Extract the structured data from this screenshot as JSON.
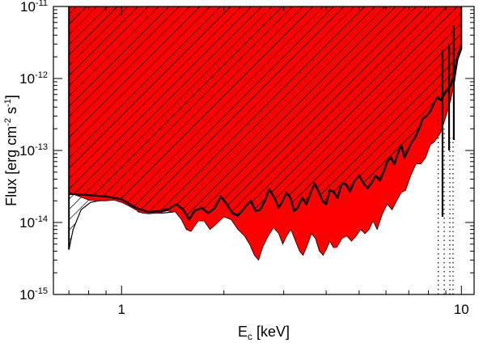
{
  "chart_data": {
    "type": "area",
    "xlabel": {
      "main": "E",
      "sub": "c",
      "rest": " [keV]"
    },
    "ylabel": {
      "p1": "Flux [erg cm",
      "sup1": "-2",
      "p2": " s",
      "sup2": "-1",
      "p3": "]"
    },
    "x_scale": "log",
    "y_scale": "log",
    "xlim": [
      0.63,
      10.9
    ],
    "ylim": [
      1e-15,
      1e-11
    ],
    "x_ticklabels": [
      {
        "value": 1,
        "label": "1"
      },
      {
        "value": 10,
        "label": "10"
      }
    ],
    "y_ticklabels": [
      {
        "value": 1e-15,
        "base": "10",
        "exp": "-15"
      },
      {
        "value": 1e-14,
        "base": "10",
        "exp": "-14"
      },
      {
        "value": 1e-13,
        "base": "10",
        "exp": "-13"
      },
      {
        "value": 1e-12,
        "base": "10",
        "exp": "-12"
      },
      {
        "value": 1e-11,
        "base": "10",
        "exp": "-11"
      }
    ],
    "colors": {
      "red_region": "#ff0000",
      "outline": "#000000",
      "hatch": "#000000"
    },
    "series": [
      {
        "style": "black-hatched-region",
        "upper": [
          [
            0.7,
            1e-11
          ],
          [
            10.0,
            1e-11
          ]
        ],
        "lower": [
          [
            0.7,
            4.2e-15
          ],
          [
            0.72,
            8e-15
          ],
          [
            0.76,
            1.5e-14
          ],
          [
            0.81,
            1.9e-14
          ],
          [
            0.88,
            2.05e-14
          ],
          [
            0.95,
            2.2e-14
          ],
          [
            1.02,
            2.1e-14
          ],
          [
            1.08,
            1.8e-14
          ],
          [
            1.12,
            1.4e-14
          ],
          [
            1.2,
            1.35e-14
          ],
          [
            1.32,
            1.35e-14
          ],
          [
            1.42,
            1.4e-14
          ],
          [
            1.5,
            1.6e-14
          ],
          [
            1.58,
            1.8e-14
          ],
          [
            1.7,
            1.9e-14
          ],
          [
            1.85,
            2e-14
          ],
          [
            2.0,
            2e-14
          ],
          [
            2.2,
            2.15e-14
          ],
          [
            2.45,
            2.2e-14
          ],
          [
            2.7,
            2.4e-14
          ],
          [
            3.0,
            2.5e-14
          ],
          [
            3.3,
            2.7e-14
          ],
          [
            3.6,
            3e-14
          ],
          [
            4.0,
            3.2e-14
          ],
          [
            4.4,
            3.5e-14
          ],
          [
            4.8,
            4e-14
          ],
          [
            5.2,
            5e-14
          ],
          [
            5.6,
            6e-14
          ],
          [
            6.0,
            8e-14
          ],
          [
            6.5,
            1e-13
          ],
          [
            7.0,
            1.4e-13
          ],
          [
            7.5,
            2e-13
          ],
          [
            8.0,
            3e-13
          ],
          [
            8.5,
            5e-13
          ],
          [
            9.0,
            8e-13
          ],
          [
            9.5,
            1.3e-12
          ],
          [
            10.0,
            2.5e-12
          ]
        ]
      },
      {
        "style": "red-region",
        "upper": [
          [
            0.7,
            1e-11
          ],
          [
            10.0,
            1e-11
          ]
        ],
        "lower": [
          [
            0.7,
            2.6e-14
          ],
          [
            0.75,
            2.3e-14
          ],
          [
            0.8,
            2.05e-14
          ],
          [
            0.85,
            2e-14
          ],
          [
            0.9,
            2e-14
          ],
          [
            0.95,
            2.05e-14
          ],
          [
            1.0,
            1.9e-14
          ],
          [
            1.05,
            1.7e-14
          ],
          [
            1.1,
            1.5e-14
          ],
          [
            1.15,
            1.35e-14
          ],
          [
            1.2,
            1.32e-14
          ],
          [
            1.28,
            1.35e-14
          ],
          [
            1.36,
            1.45e-14
          ],
          [
            1.44,
            1.4e-14
          ],
          [
            1.5,
            1.1e-14
          ],
          [
            1.55,
            8e-15
          ],
          [
            1.6,
            7.5e-15
          ],
          [
            1.68,
            1.05e-14
          ],
          [
            1.75,
            1.05e-14
          ],
          [
            1.82,
            8e-15
          ],
          [
            1.9,
            9.5e-15
          ],
          [
            2.0,
            1.2e-14
          ],
          [
            2.1,
            1.1e-14
          ],
          [
            2.2,
            8e-15
          ],
          [
            2.3,
            6.5e-15
          ],
          [
            2.38,
            5e-15
          ],
          [
            2.46,
            3.5e-15
          ],
          [
            2.53,
            3e-15
          ],
          [
            2.6,
            4.5e-15
          ],
          [
            2.7,
            6.5e-15
          ],
          [
            2.8,
            8.5e-15
          ],
          [
            2.9,
            7e-15
          ],
          [
            2.98,
            5e-15
          ],
          [
            3.06,
            6.5e-15
          ],
          [
            3.15,
            8e-15
          ],
          [
            3.25,
            5.5e-15
          ],
          [
            3.34,
            4e-15
          ],
          [
            3.42,
            3.5e-15
          ],
          [
            3.5,
            4.5e-15
          ],
          [
            3.62,
            7e-15
          ],
          [
            3.72,
            6e-15
          ],
          [
            3.82,
            4e-15
          ],
          [
            3.92,
            3.5e-15
          ],
          [
            4.0,
            4.2e-15
          ],
          [
            4.1,
            5.5e-15
          ],
          [
            4.2,
            4.5e-15
          ],
          [
            4.3,
            4.5e-15
          ],
          [
            4.45,
            6e-15
          ],
          [
            4.6,
            6.5e-15
          ],
          [
            4.75,
            5.5e-15
          ],
          [
            4.9,
            6.5e-15
          ],
          [
            5.05,
            8e-15
          ],
          [
            5.2,
            7e-15
          ],
          [
            5.35,
            8e-15
          ],
          [
            5.5,
            1.05e-14
          ],
          [
            5.65,
            8e-15
          ],
          [
            5.85,
            1.3e-14
          ],
          [
            6.05,
            1.8e-14
          ],
          [
            6.25,
            1.5e-14
          ],
          [
            6.45,
            2e-14
          ],
          [
            6.65,
            2.6e-14
          ],
          [
            6.85,
            2.8e-14
          ],
          [
            7.1,
            4.5e-14
          ],
          [
            7.35,
            6.5e-14
          ],
          [
            7.6,
            6.5e-14
          ],
          [
            7.85,
            8e-14
          ],
          [
            8.1,
            1.2e-13
          ],
          [
            8.3,
            1.3e-13
          ],
          [
            8.5,
            1.5e-13
          ],
          [
            8.7,
            1.8e-13
          ],
          [
            8.9,
            2.5e-13
          ],
          [
            9.1,
            3.5e-13
          ],
          [
            9.3,
            5e-13
          ],
          [
            9.55,
            9e-13
          ],
          [
            9.8,
            2e-12
          ],
          [
            10.0,
            3e-12
          ]
        ]
      },
      {
        "style": "black-outline-hatched-region",
        "upper": [
          [
            0.7,
            1e-11
          ],
          [
            10.0,
            1e-11
          ]
        ],
        "lower": [
          [
            0.7,
            2.5e-14
          ],
          [
            0.8,
            2.4e-14
          ],
          [
            0.9,
            2.3e-14
          ],
          [
            1.0,
            2.1e-14
          ],
          [
            1.1,
            1.6e-14
          ],
          [
            1.2,
            1.4e-14
          ],
          [
            1.3,
            1.45e-14
          ],
          [
            1.38,
            1.55e-14
          ],
          [
            1.45,
            1.8e-14
          ],
          [
            1.52,
            1.5e-14
          ],
          [
            1.58,
            1.1e-14
          ],
          [
            1.64,
            1.45e-14
          ],
          [
            1.72,
            1.6e-14
          ],
          [
            1.8,
            1.35e-14
          ],
          [
            1.88,
            1.6e-14
          ],
          [
            1.96,
            2.3e-14
          ],
          [
            2.04,
            1.8e-14
          ],
          [
            2.12,
            1.35e-14
          ],
          [
            2.2,
            1.25e-14
          ],
          [
            2.3,
            1.6e-14
          ],
          [
            2.4,
            2e-14
          ],
          [
            2.48,
            1.45e-14
          ],
          [
            2.56,
            1.5e-14
          ],
          [
            2.64,
            2e-14
          ],
          [
            2.72,
            2.9e-14
          ],
          [
            2.82,
            2.2e-14
          ],
          [
            2.9,
            1.6e-14
          ],
          [
            2.98,
            2e-14
          ],
          [
            3.06,
            2.6e-14
          ],
          [
            3.14,
            2.2e-14
          ],
          [
            3.22,
            1.45e-14
          ],
          [
            3.3,
            1.6e-14
          ],
          [
            3.4,
            2.2e-14
          ],
          [
            3.5,
            1.8e-14
          ],
          [
            3.6,
            2.6e-14
          ],
          [
            3.7,
            3.5e-14
          ],
          [
            3.8,
            2.7e-14
          ],
          [
            3.9,
            2e-14
          ],
          [
            4.0,
            1.8e-14
          ],
          [
            4.1,
            2.8e-14
          ],
          [
            4.2,
            2.7e-14
          ],
          [
            4.32,
            2.2e-14
          ],
          [
            4.45,
            3.5e-14
          ],
          [
            4.58,
            3.4e-14
          ],
          [
            4.7,
            2.7e-14
          ],
          [
            4.85,
            3.8e-14
          ],
          [
            5.0,
            4.5e-14
          ],
          [
            5.15,
            3.5e-14
          ],
          [
            5.3,
            3e-14
          ],
          [
            5.45,
            3.6e-14
          ],
          [
            5.6,
            4.5e-14
          ],
          [
            5.75,
            3.8e-14
          ],
          [
            5.9,
            5e-14
          ],
          [
            6.05,
            7e-14
          ],
          [
            6.2,
            8e-14
          ],
          [
            6.35,
            6.5e-14
          ],
          [
            6.5,
            9e-14
          ],
          [
            6.65,
            1.2e-13
          ],
          [
            6.8,
            8e-14
          ],
          [
            6.95,
            1e-13
          ],
          [
            7.1,
            1.25e-13
          ],
          [
            7.3,
            1.5e-13
          ],
          [
            7.5,
            2e-13
          ],
          [
            7.7,
            2.8e-13
          ],
          [
            7.9,
            3e-13
          ],
          [
            8.1,
            3.5e-13
          ],
          [
            8.3,
            4.5e-13
          ],
          [
            8.5,
            5.5e-13
          ],
          [
            8.7,
            5e-13
          ],
          [
            8.9,
            6e-13
          ],
          [
            9.1,
            7e-13
          ],
          [
            9.3,
            8e-13
          ],
          [
            9.55,
            1.2e-12
          ],
          [
            9.8,
            2.2e-12
          ],
          [
            10.0,
            2.8e-12
          ]
        ]
      },
      {
        "style": "vertical-spike",
        "points": [
          [
            8.8,
            1.2e-14
          ],
          [
            8.8,
            2.5e-12
          ]
        ]
      },
      {
        "style": "vertical-spike",
        "points": [
          [
            9.2,
            1e-13
          ],
          [
            9.2,
            3e-12
          ]
        ]
      },
      {
        "style": "vertical-spike",
        "points": [
          [
            9.5,
            1.4e-13
          ],
          [
            9.5,
            5.5e-12
          ]
        ]
      },
      {
        "style": "vertical-dotted",
        "points": [
          [
            8.55,
            1e-15
          ],
          [
            8.55,
            3e-13
          ]
        ]
      },
      {
        "style": "vertical-dotted",
        "points": [
          [
            8.9,
            1e-15
          ],
          [
            8.9,
            2e-13
          ]
        ]
      },
      {
        "style": "vertical-dotted",
        "points": [
          [
            9.25,
            1e-15
          ],
          [
            9.25,
            1.5e-13
          ]
        ]
      },
      {
        "style": "vertical-dotted",
        "points": [
          [
            9.45,
            1e-15
          ],
          [
            9.45,
            1.5e-13
          ]
        ]
      }
    ]
  }
}
